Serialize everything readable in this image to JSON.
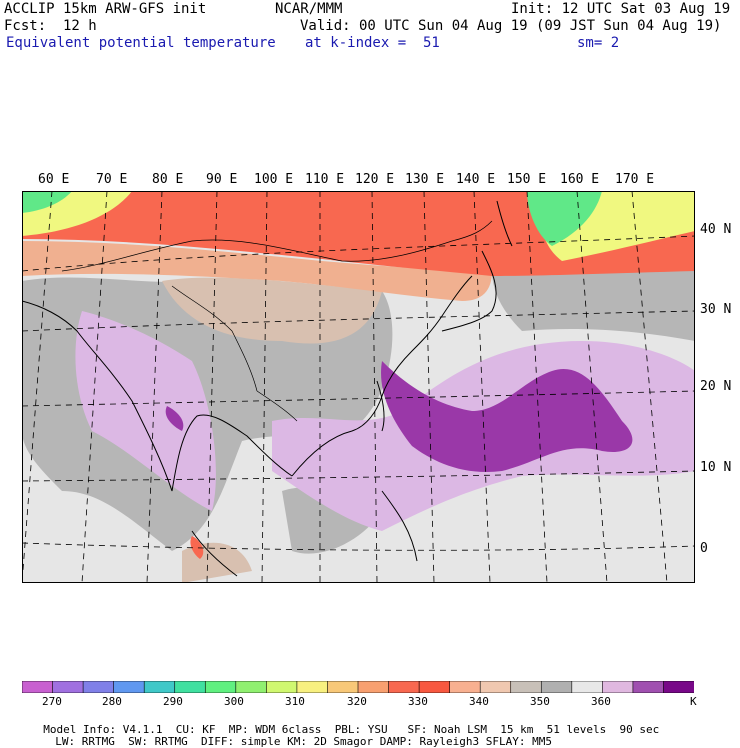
{
  "header": {
    "model": "ACCLIP 15km ARW-GFS init",
    "org": "NCAR/MMM",
    "init": "Init: 12 UTC Sat 03 Aug 19",
    "fcst_label": "Fcst:",
    "fcst_value": "12 h",
    "valid": "Valid: 00 UTC Sun 04 Aug 19 (09 JST Sun 04 Aug 19)",
    "field": "Equivalent potential temperature",
    "level": "at k-index =  51",
    "smooth": "sm= 2"
  },
  "map": {
    "lon_labels": [
      "60 E",
      "70 E",
      "80 E",
      "90 E",
      "100 E",
      "110 E",
      "120 E",
      "130 E",
      "140 E",
      "150 E",
      "160 E",
      "170 E"
    ],
    "lat_labels": [
      "40 N",
      "30 N",
      "20 N",
      "10 N",
      "0"
    ]
  },
  "colorbar": {
    "colors": [
      "#c860d0",
      "#a070e0",
      "#8080e8",
      "#6098f0",
      "#40c8c8",
      "#40e0a0",
      "#60f080",
      "#90f070",
      "#d0f870",
      "#f8f080",
      "#f8c878",
      "#f8a070",
      "#f86850",
      "#f85840",
      "#f8b090",
      "#f0c8b0",
      "#c8c0b8",
      "#b0b0b0",
      "#e8e8e8",
      "#e0b8e0",
      "#a050b0",
      "#780888"
    ],
    "labels": [
      "270",
      "280",
      "290",
      "300",
      "310",
      "320",
      "330",
      "340",
      "350",
      "360"
    ],
    "unit": "K"
  },
  "footer": {
    "line1": [
      "Model Info: V4.1.1",
      "CU: KF",
      "MP: WDM 6class",
      "PBL: YSU",
      "SF: Noah LSM",
      "15 km",
      "51 levels",
      "90 sec"
    ],
    "line2": [
      "LW: RRTMG",
      "SW: RRTMG",
      "DIFF: simple",
      "KM: 2D Smagor",
      "DAMP: Rayleigh3",
      "SFLAY: MM5"
    ]
  },
  "colors": {
    "ocean": "#e6e6e6",
    "land_gray": "#b6b6b6",
    "light_brown": "#d8c0b0",
    "salmon": "#f0b090",
    "red": "#f86850",
    "yellow": "#f0f880",
    "green": "#60e888",
    "lavender": "#dcb8e4",
    "purple": "#9a38a8"
  }
}
